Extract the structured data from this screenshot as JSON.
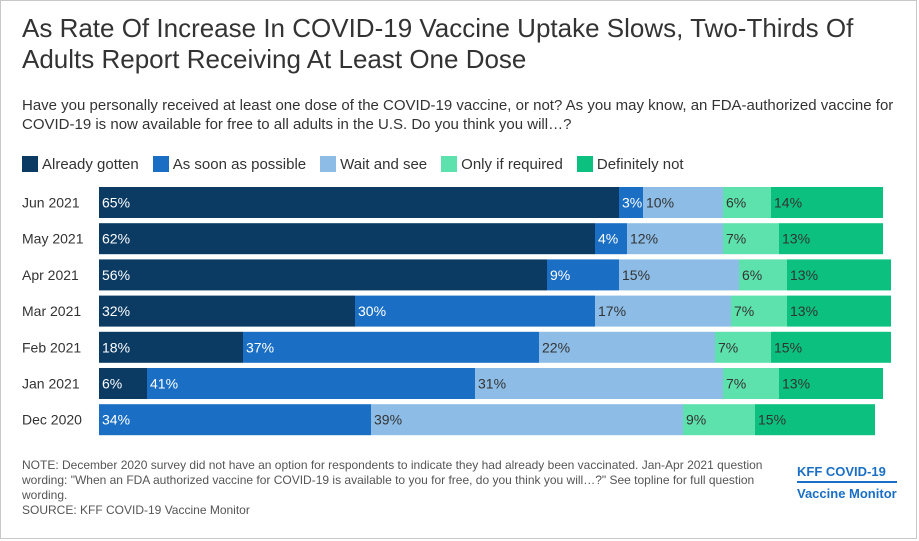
{
  "title": "As Rate Of Increase In COVID-19 Vaccine Uptake Slows, Two-Thirds Of Adults Report Receiving At Least One Dose",
  "subtitle": "Have you personally received at least one dose of the COVID-19 vaccine, or not? As you may know, an FDA-authorized vaccine for COVID-19 is now available for free to all adults in the U.S. Do you think you will…?",
  "note": "NOTE: December 2020 survey did not have an option for respondents to indicate they had already been vaccinated. Jan-Apr 2021 question wording: \"When an FDA authorized vaccine for COVID-19 is available to you for free, do you think you will…?\" See topline for full question wording.",
  "source": "SOURCE: KFF COVID-19 Vaccine Monitor",
  "brand": {
    "line1": "KFF COVID-19",
    "line2": "Vaccine Monitor"
  },
  "chart_data": {
    "type": "bar",
    "orientation": "horizontal",
    "stacked": true,
    "title": "",
    "xlabel": "",
    "ylabel": "",
    "xlim": [
      0,
      100
    ],
    "legend_position": "top-left",
    "grid": false,
    "categories": [
      "Jun 2021",
      "May 2021",
      "Apr 2021",
      "Mar 2021",
      "Feb 2021",
      "Jan 2021",
      "Dec 2020"
    ],
    "series": [
      {
        "name": "Already gotten",
        "color": "#0b3a63",
        "label_color": "#ffffff",
        "values": [
          65,
          62,
          56,
          32,
          18,
          6,
          null
        ]
      },
      {
        "name": "As soon as possible",
        "color": "#1a6fc4",
        "label_color": "#ffffff",
        "values": [
          3,
          4,
          9,
          30,
          37,
          41,
          34
        ]
      },
      {
        "name": "Wait and see",
        "color": "#8dbde6",
        "label_color": "#333333",
        "values": [
          10,
          12,
          15,
          17,
          22,
          31,
          39
        ]
      },
      {
        "name": "Only if required",
        "color": "#5ee2ad",
        "label_color": "#333333",
        "values": [
          6,
          7,
          6,
          7,
          7,
          7,
          9
        ]
      },
      {
        "name": "Definitely not",
        "color": "#0cc17f",
        "label_color": "#333333",
        "values": [
          14,
          13,
          13,
          13,
          15,
          13,
          15
        ]
      }
    ]
  }
}
